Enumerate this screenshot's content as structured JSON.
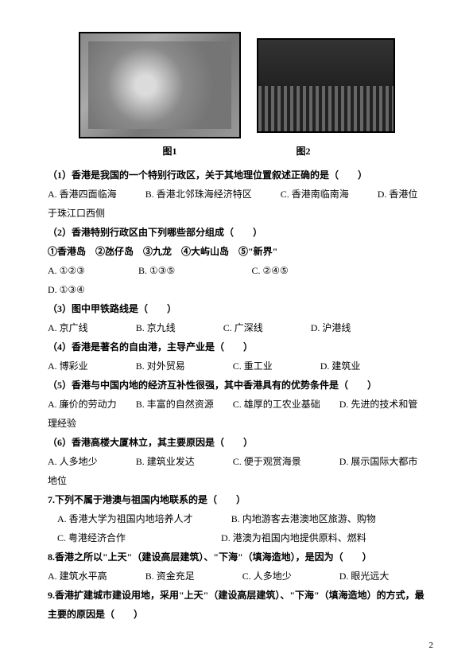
{
  "figures": {
    "fig1_label": "图1",
    "fig2_label": "图2"
  },
  "q1": {
    "stem": "（1）香港是我国的一个特别行政区，关于其地理位置叙述正确的是（　　）",
    "a": "A. 香港四面临海",
    "b": "B. 香港北邻珠海经济特区",
    "c": "C. 香港南临南海",
    "d": "D. 香港位于珠江口西侧"
  },
  "q2": {
    "stem": "（2）香港特别行政区由下列哪些部分组成（　　）",
    "items": "①香港岛　②氹仔岛　③九龙　④大屿山岛　⑤\"新界\"",
    "a": "A. ①②③",
    "b": "B. ①③⑤",
    "c": "C. ②④⑤",
    "d": "D. ①③④"
  },
  "q3": {
    "stem": "（3）图中甲铁路线是（　　）",
    "a": "A. 京广线",
    "b": "B. 京九线",
    "c": "C. 广深线",
    "d": "D. 沪港线"
  },
  "q4": {
    "stem": "（4）香港是著名的自由港，主导产业是（　　）",
    "a": "A. 博彩业",
    "b": "B. 对外贸易",
    "c": "C. 重工业",
    "d": "D. 建筑业"
  },
  "q5": {
    "stem": "（5）香港与中国内地的经济互补性很强，其中香港具有的优势条件是（　　）",
    "a": "A. 廉价的劳动力",
    "b": "B. 丰富的自然资源",
    "c": "C. 雄厚的工农业基础",
    "d": "D. 先进的技术和管理经验"
  },
  "q6": {
    "stem": "（6）香港高楼大厦林立，其主要原因是（　　）",
    "a": "A. 人多地少",
    "b": "B. 建筑业发达",
    "c": "C. 便于观赏海景",
    "d": "D. 展示国际大都市地位"
  },
  "q7": {
    "stem": "7.下列不属于港澳与祖国内地联系的是（　　）",
    "a": "A. 香港大学为祖国内地培养人才",
    "b": "B. 内地游客去港澳地区旅游、购物",
    "c": "C. 粤港经济合作",
    "d": "D. 港澳为祖国内地提供原料、燃料"
  },
  "q8": {
    "stem": "8.香港之所以\"上天\"（建设高层建筑）、\"下海\"（填海造地），是因为（　　）",
    "a": "A. 建筑水平高",
    "b": "B. 资金充足",
    "c": "C. 人多地少",
    "d": "D. 眼光远大"
  },
  "q9": {
    "stem": "9.香港扩建城市建设用地，采用\"上天\"（建设高层建筑）、\"下海\"（填海造地）的方式，最主要的原因是（　　）"
  },
  "pagenum": "2"
}
